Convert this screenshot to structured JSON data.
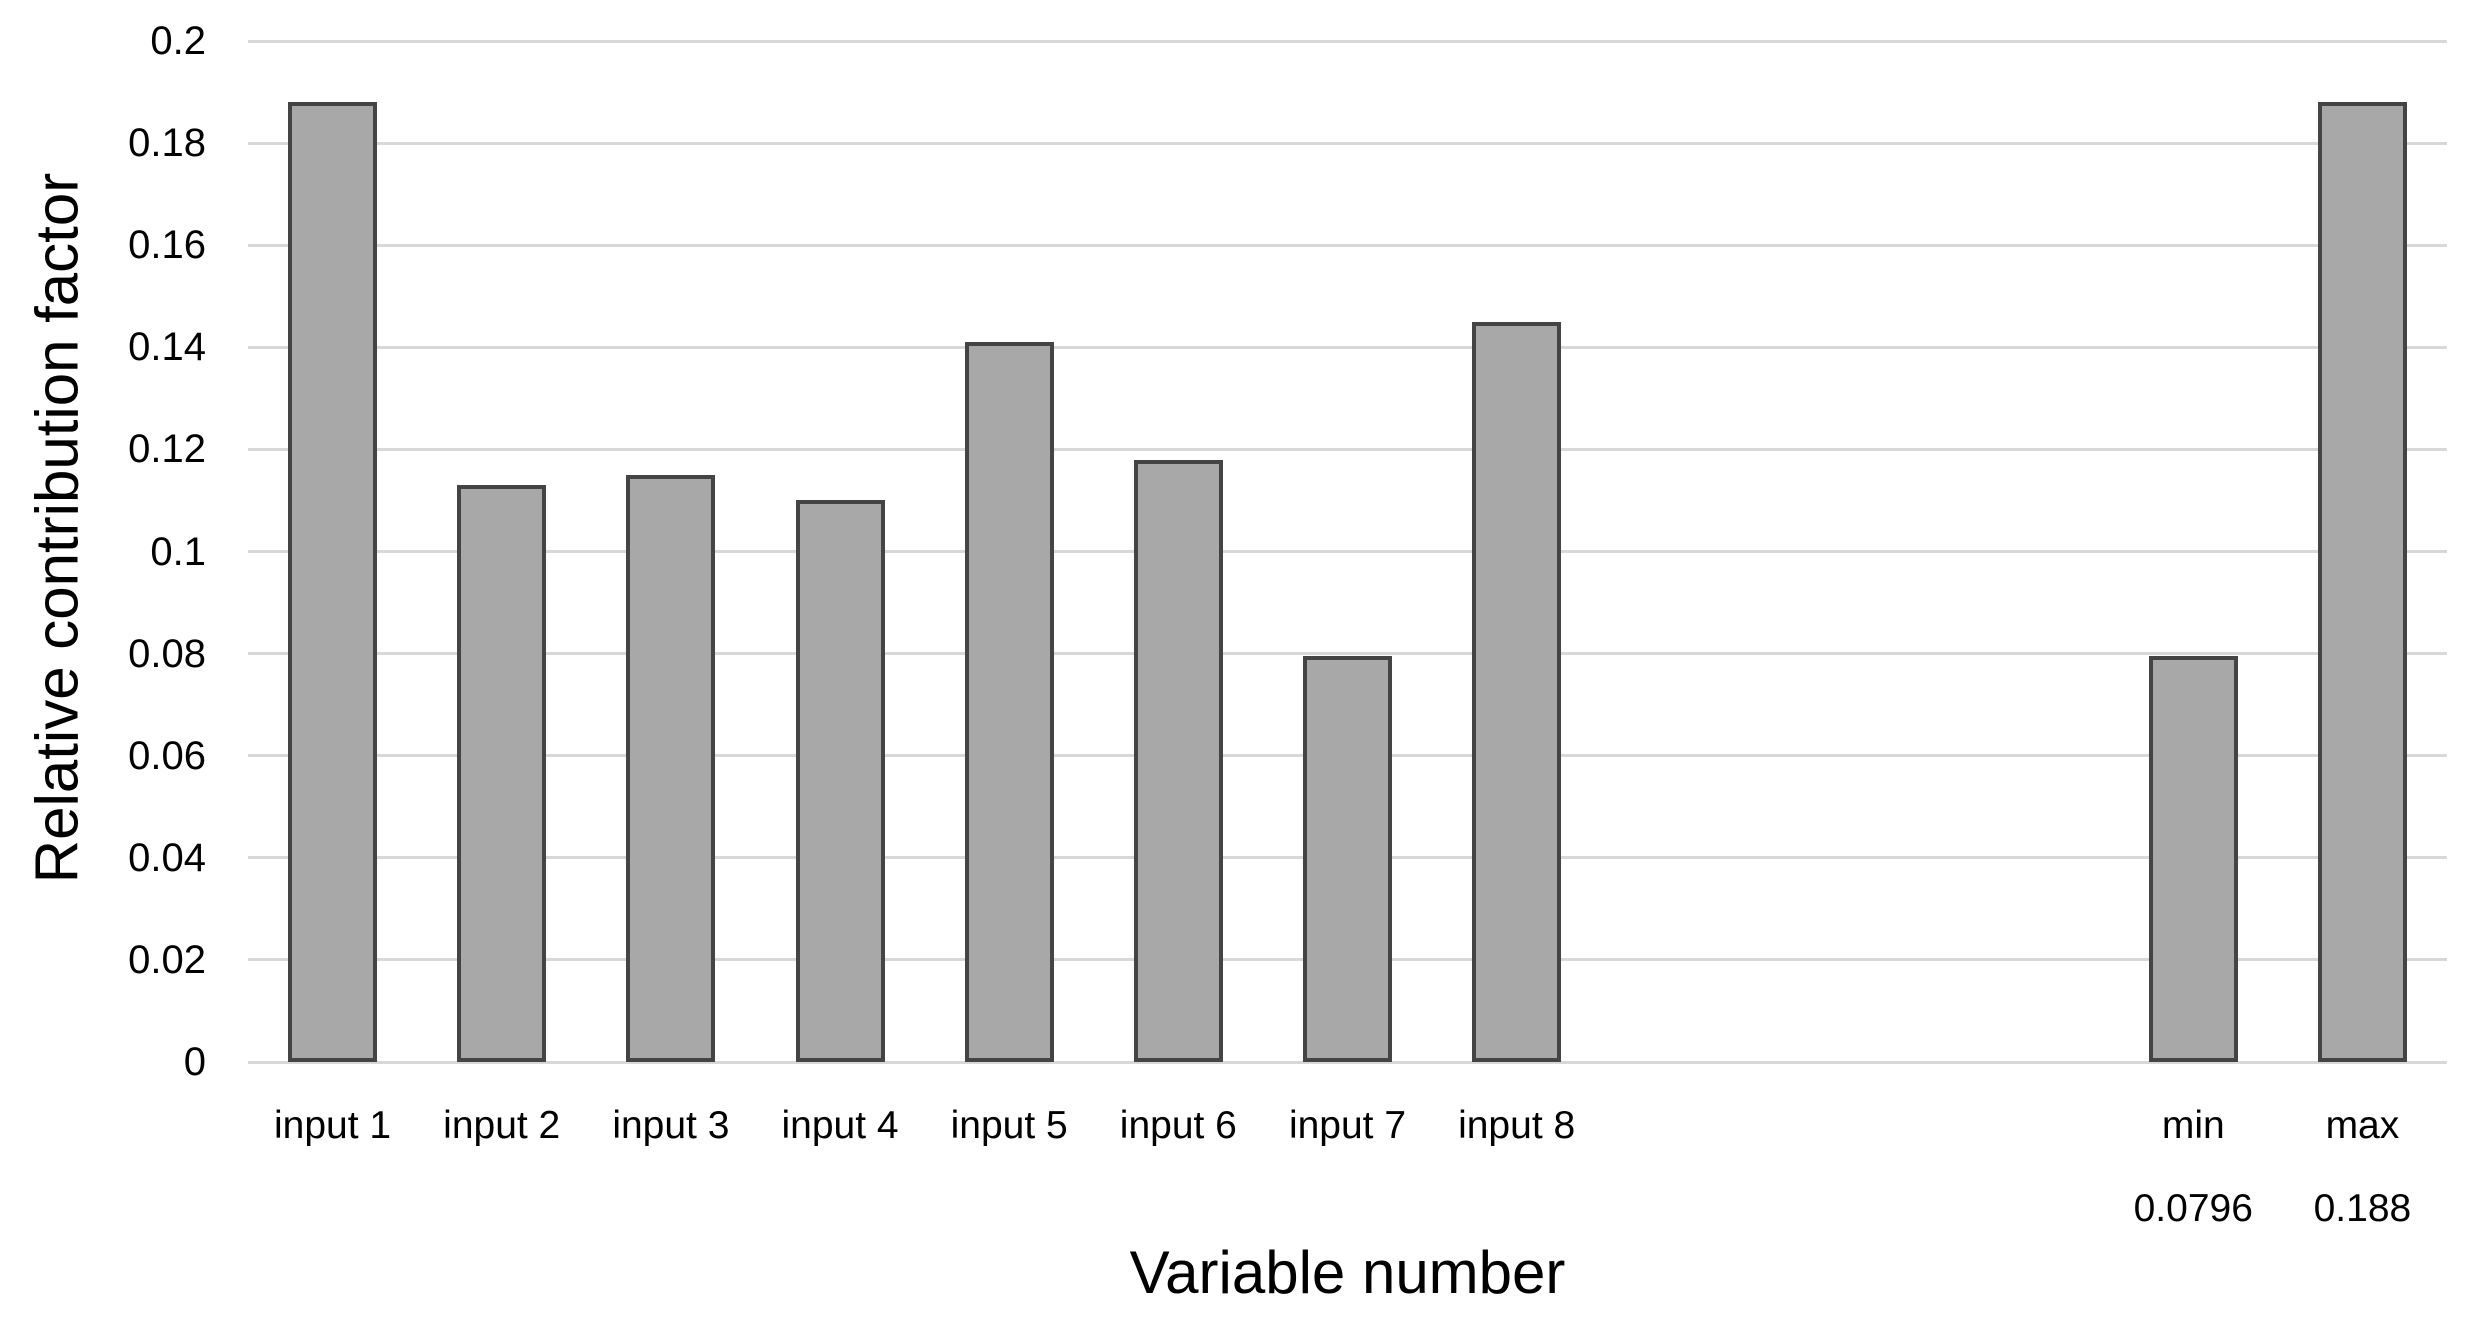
{
  "chart_data": {
    "type": "bar",
    "title": "",
    "xlabel": "Variable number",
    "ylabel": "Relative contribution factor",
    "ylim": [
      0,
      0.2
    ],
    "ytick_step": 0.02,
    "ytick_labels": [
      "0.2",
      "0.18",
      "0.16",
      "0.14",
      "0.12",
      "0.1",
      "0.08",
      "0.06",
      "0.04",
      "0.02",
      "0"
    ],
    "grid": true,
    "legend": "none",
    "num_slots": 13,
    "bars": [
      {
        "label": "input 1",
        "value": 0.188,
        "slot": 0
      },
      {
        "label": "input 2",
        "value": 0.113,
        "slot": 1
      },
      {
        "label": "input 3",
        "value": 0.115,
        "slot": 2
      },
      {
        "label": "input 4",
        "value": 0.11,
        "slot": 3
      },
      {
        "label": "input 5",
        "value": 0.141,
        "slot": 4
      },
      {
        "label": "input 6",
        "value": 0.118,
        "slot": 5
      },
      {
        "label": "input 7",
        "value": 0.0796,
        "slot": 6
      },
      {
        "label": "input 8",
        "value": 0.145,
        "slot": 7
      },
      {
        "label": "min",
        "sublabel": "0.0796",
        "value": 0.0796,
        "slot": 11
      },
      {
        "label": "max",
        "sublabel": "0.188",
        "value": 0.188,
        "slot": 12
      }
    ],
    "colors": {
      "bar_fill": "#a8a8a8",
      "bar_border": "#444444",
      "gridline": "#d8d8d8",
      "text": "#000000",
      "background": "#ffffff"
    }
  }
}
